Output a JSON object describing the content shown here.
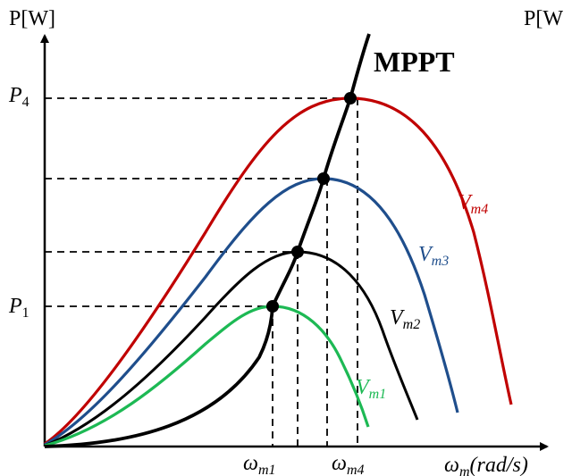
{
  "y_axis_label": "P[W]",
  "y_axis_label_right": "P[W",
  "x_axis_label": {
    "main": "ω",
    "sub": "m",
    "tail": "(rad/s)"
  },
  "mppt_label": "MPPT",
  "p_ticks": [
    {
      "main": "P",
      "sub": "4"
    },
    {
      "main": "P",
      "sub": "1"
    }
  ],
  "omega_ticks": [
    {
      "main": "ω",
      "sub": "m1"
    },
    {
      "main": "ω",
      "sub": "m4"
    }
  ],
  "curve_labels": [
    {
      "main": "V",
      "sub": "m4",
      "color": "#c00000"
    },
    {
      "main": "V",
      "sub": "m3",
      "color": "#1f4e8c"
    },
    {
      "main": "V",
      "sub": "m2",
      "color": "#000000"
    },
    {
      "main": "V",
      "sub": "m1",
      "color": "#1db954"
    }
  ],
  "colors": {
    "vm4": "#c00000",
    "vm3": "#1f4e8c",
    "vm2": "#000000",
    "vm1": "#1db954",
    "mppt": "#000000",
    "axis": "#000000"
  }
}
